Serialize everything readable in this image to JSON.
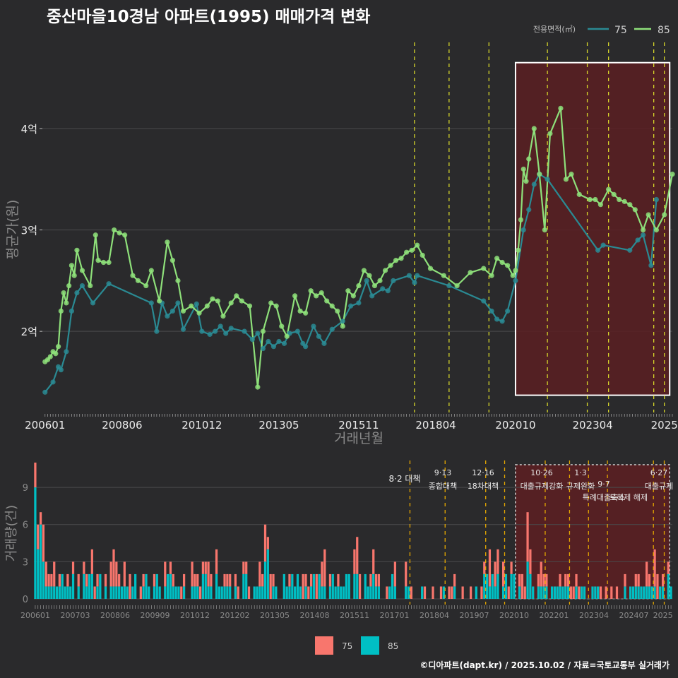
{
  "title": "중산마을10경남 아파트(1995) 매매가격 변화",
  "credit": "©디아파트(dapt.kr) / 2025.10.02 / 자료=국토교통부 실거래가",
  "colors": {
    "s75": "#2a8a93",
    "s85": "#8ee07a",
    "bar75": "#f8766d",
    "bar85": "#00bfc4",
    "vline": "#d6d62a",
    "vline_bar": "#e6a800",
    "region": "#5a1f22",
    "grid": "#4a4a4c",
    "text": "#ececec"
  },
  "chart_data": [
    {
      "type": "line",
      "title": "중산마을10경남 아파트(1995) 매매가격 변화",
      "xlabel": "거래년월",
      "ylabel": "평균가(원)",
      "x_ticks": [
        "200601",
        "200806",
        "201012",
        "201305",
        "201511",
        "201804",
        "202010",
        "202304",
        "2025"
      ],
      "x_tick_values": [
        0,
        29,
        59,
        88,
        118,
        147,
        177,
        206,
        233
      ],
      "y_ticks": [
        "2억",
        "3억",
        "4억"
      ],
      "y_tick_values": [
        2,
        3,
        4
      ],
      "ylim": [
        1.2,
        4.85
      ],
      "xlim": [
        -1,
        236
      ],
      "legend_title": "전용면적(㎡)",
      "legend": [
        "75",
        "85"
      ],
      "highlight_x": [
        177,
        235
      ],
      "policy_lines_x": [
        139,
        152,
        167,
        189,
        204,
        212,
        229,
        233
      ],
      "series": [
        {
          "name": "75",
          "x": [
            0,
            3,
            5,
            6,
            8,
            10,
            12,
            14,
            18,
            24,
            40,
            42,
            44,
            46,
            48,
            50,
            52,
            57,
            59,
            62,
            64,
            66,
            68,
            70,
            75,
            78,
            80,
            82,
            84,
            86,
            88,
            90,
            92,
            95,
            97,
            98,
            101,
            103,
            105,
            108,
            112,
            115,
            118,
            121,
            123,
            127,
            129,
            131,
            137,
            139,
            140,
            152,
            165,
            168,
            170,
            172,
            174,
            177,
            180,
            182,
            184,
            186,
            189,
            208,
            210,
            220,
            223,
            225,
            228,
            230
          ],
          "y": [
            1.4,
            1.5,
            1.65,
            1.62,
            1.8,
            2.2,
            2.38,
            2.45,
            2.28,
            2.47,
            2.28,
            2.0,
            2.28,
            2.15,
            2.2,
            2.28,
            2.02,
            2.27,
            2.0,
            1.97,
            2.0,
            2.05,
            1.98,
            2.03,
            2.0,
            1.92,
            1.98,
            1.83,
            1.9,
            1.85,
            1.9,
            1.88,
            1.98,
            2.0,
            1.88,
            1.85,
            2.05,
            1.95,
            1.88,
            2.02,
            2.1,
            2.25,
            2.28,
            2.5,
            2.35,
            2.42,
            2.4,
            2.5,
            2.55,
            2.48,
            2.55,
            2.45,
            2.3,
            2.2,
            2.12,
            2.1,
            2.2,
            2.5,
            3.0,
            3.2,
            3.45,
            3.55,
            3.5,
            2.8,
            2.85,
            2.8,
            2.9,
            2.95,
            2.65,
            3.3
          ]
        },
        {
          "name": "85",
          "x": [
            0,
            1,
            2,
            3,
            4,
            5,
            6,
            7,
            8,
            9,
            10,
            11,
            12,
            14,
            17,
            19,
            20,
            22,
            24,
            26,
            28,
            30,
            33,
            35,
            38,
            40,
            43,
            46,
            48,
            50,
            52,
            55,
            58,
            61,
            63,
            65,
            67,
            70,
            72,
            74,
            77,
            80,
            82,
            85,
            87,
            89,
            91,
            94,
            96,
            98,
            100,
            102,
            104,
            106,
            108,
            110,
            112,
            114,
            116,
            118,
            120,
            122,
            124,
            126,
            128,
            130,
            132,
            134,
            136,
            138,
            140,
            142,
            145,
            150,
            155,
            160,
            165,
            168,
            170,
            172,
            174,
            176,
            177,
            178,
            179,
            180,
            181,
            182,
            184,
            186,
            188,
            190,
            194,
            196,
            198,
            201,
            205,
            207,
            209,
            212,
            214,
            216,
            218,
            220,
            222,
            225,
            227,
            230,
            233,
            236
          ],
          "y": [
            1.7,
            1.72,
            1.75,
            1.8,
            1.78,
            1.85,
            2.2,
            2.38,
            2.28,
            2.45,
            2.65,
            2.55,
            2.8,
            2.6,
            2.45,
            2.95,
            2.7,
            2.68,
            2.68,
            3.0,
            2.97,
            2.95,
            2.55,
            2.5,
            2.45,
            2.6,
            2.3,
            2.88,
            2.7,
            2.5,
            2.2,
            2.25,
            2.18,
            2.25,
            2.32,
            2.3,
            2.15,
            2.28,
            2.35,
            2.3,
            2.25,
            1.45,
            2.0,
            2.28,
            2.25,
            2.05,
            1.95,
            2.35,
            2.2,
            2.18,
            2.4,
            2.35,
            2.38,
            2.3,
            2.25,
            2.2,
            2.05,
            2.4,
            2.35,
            2.45,
            2.6,
            2.55,
            2.45,
            2.5,
            2.6,
            2.65,
            2.7,
            2.72,
            2.78,
            2.8,
            2.85,
            2.75,
            2.62,
            2.55,
            2.45,
            2.58,
            2.62,
            2.55,
            2.72,
            2.68,
            2.65,
            2.55,
            2.6,
            2.8,
            3.1,
            3.6,
            3.48,
            3.7,
            4.0,
            3.55,
            3.0,
            3.95,
            4.2,
            3.5,
            3.55,
            3.35,
            3.3,
            3.3,
            3.25,
            3.4,
            3.35,
            3.3,
            3.28,
            3.25,
            3.2,
            3.0,
            3.15,
            3.0,
            3.15,
            3.55
          ]
        }
      ]
    },
    {
      "type": "bar",
      "ylabel": "거래량(건)",
      "x_ticks": [
        "200601",
        "200703",
        "200806",
        "200909",
        "201012",
        "201202",
        "201305",
        "201408",
        "201511",
        "201701",
        "201804",
        "201907",
        "202010",
        "202201",
        "202304",
        "202407",
        "2025"
      ],
      "y_ticks": [
        "0",
        "3",
        "6",
        "9"
      ],
      "ylim": [
        0,
        11
      ],
      "legend": [
        "75",
        "85"
      ],
      "policy_annotations": [
        {
          "date": "8·2",
          "name": "대책"
        },
        {
          "date": "9·13",
          "name": "종합대책"
        },
        {
          "date": "12·16",
          "name": "18차대책"
        },
        {
          "date": "10·26",
          "name": "대출규제강화"
        },
        {
          "date": "1·3",
          "name": "규제완화"
        },
        {
          "date": "9·7",
          "name": "특례대출축소"
        },
        {
          "date": "",
          "name": "토허제 해제"
        },
        {
          "date": "6·27",
          "name": "대출규제"
        }
      ]
    }
  ]
}
